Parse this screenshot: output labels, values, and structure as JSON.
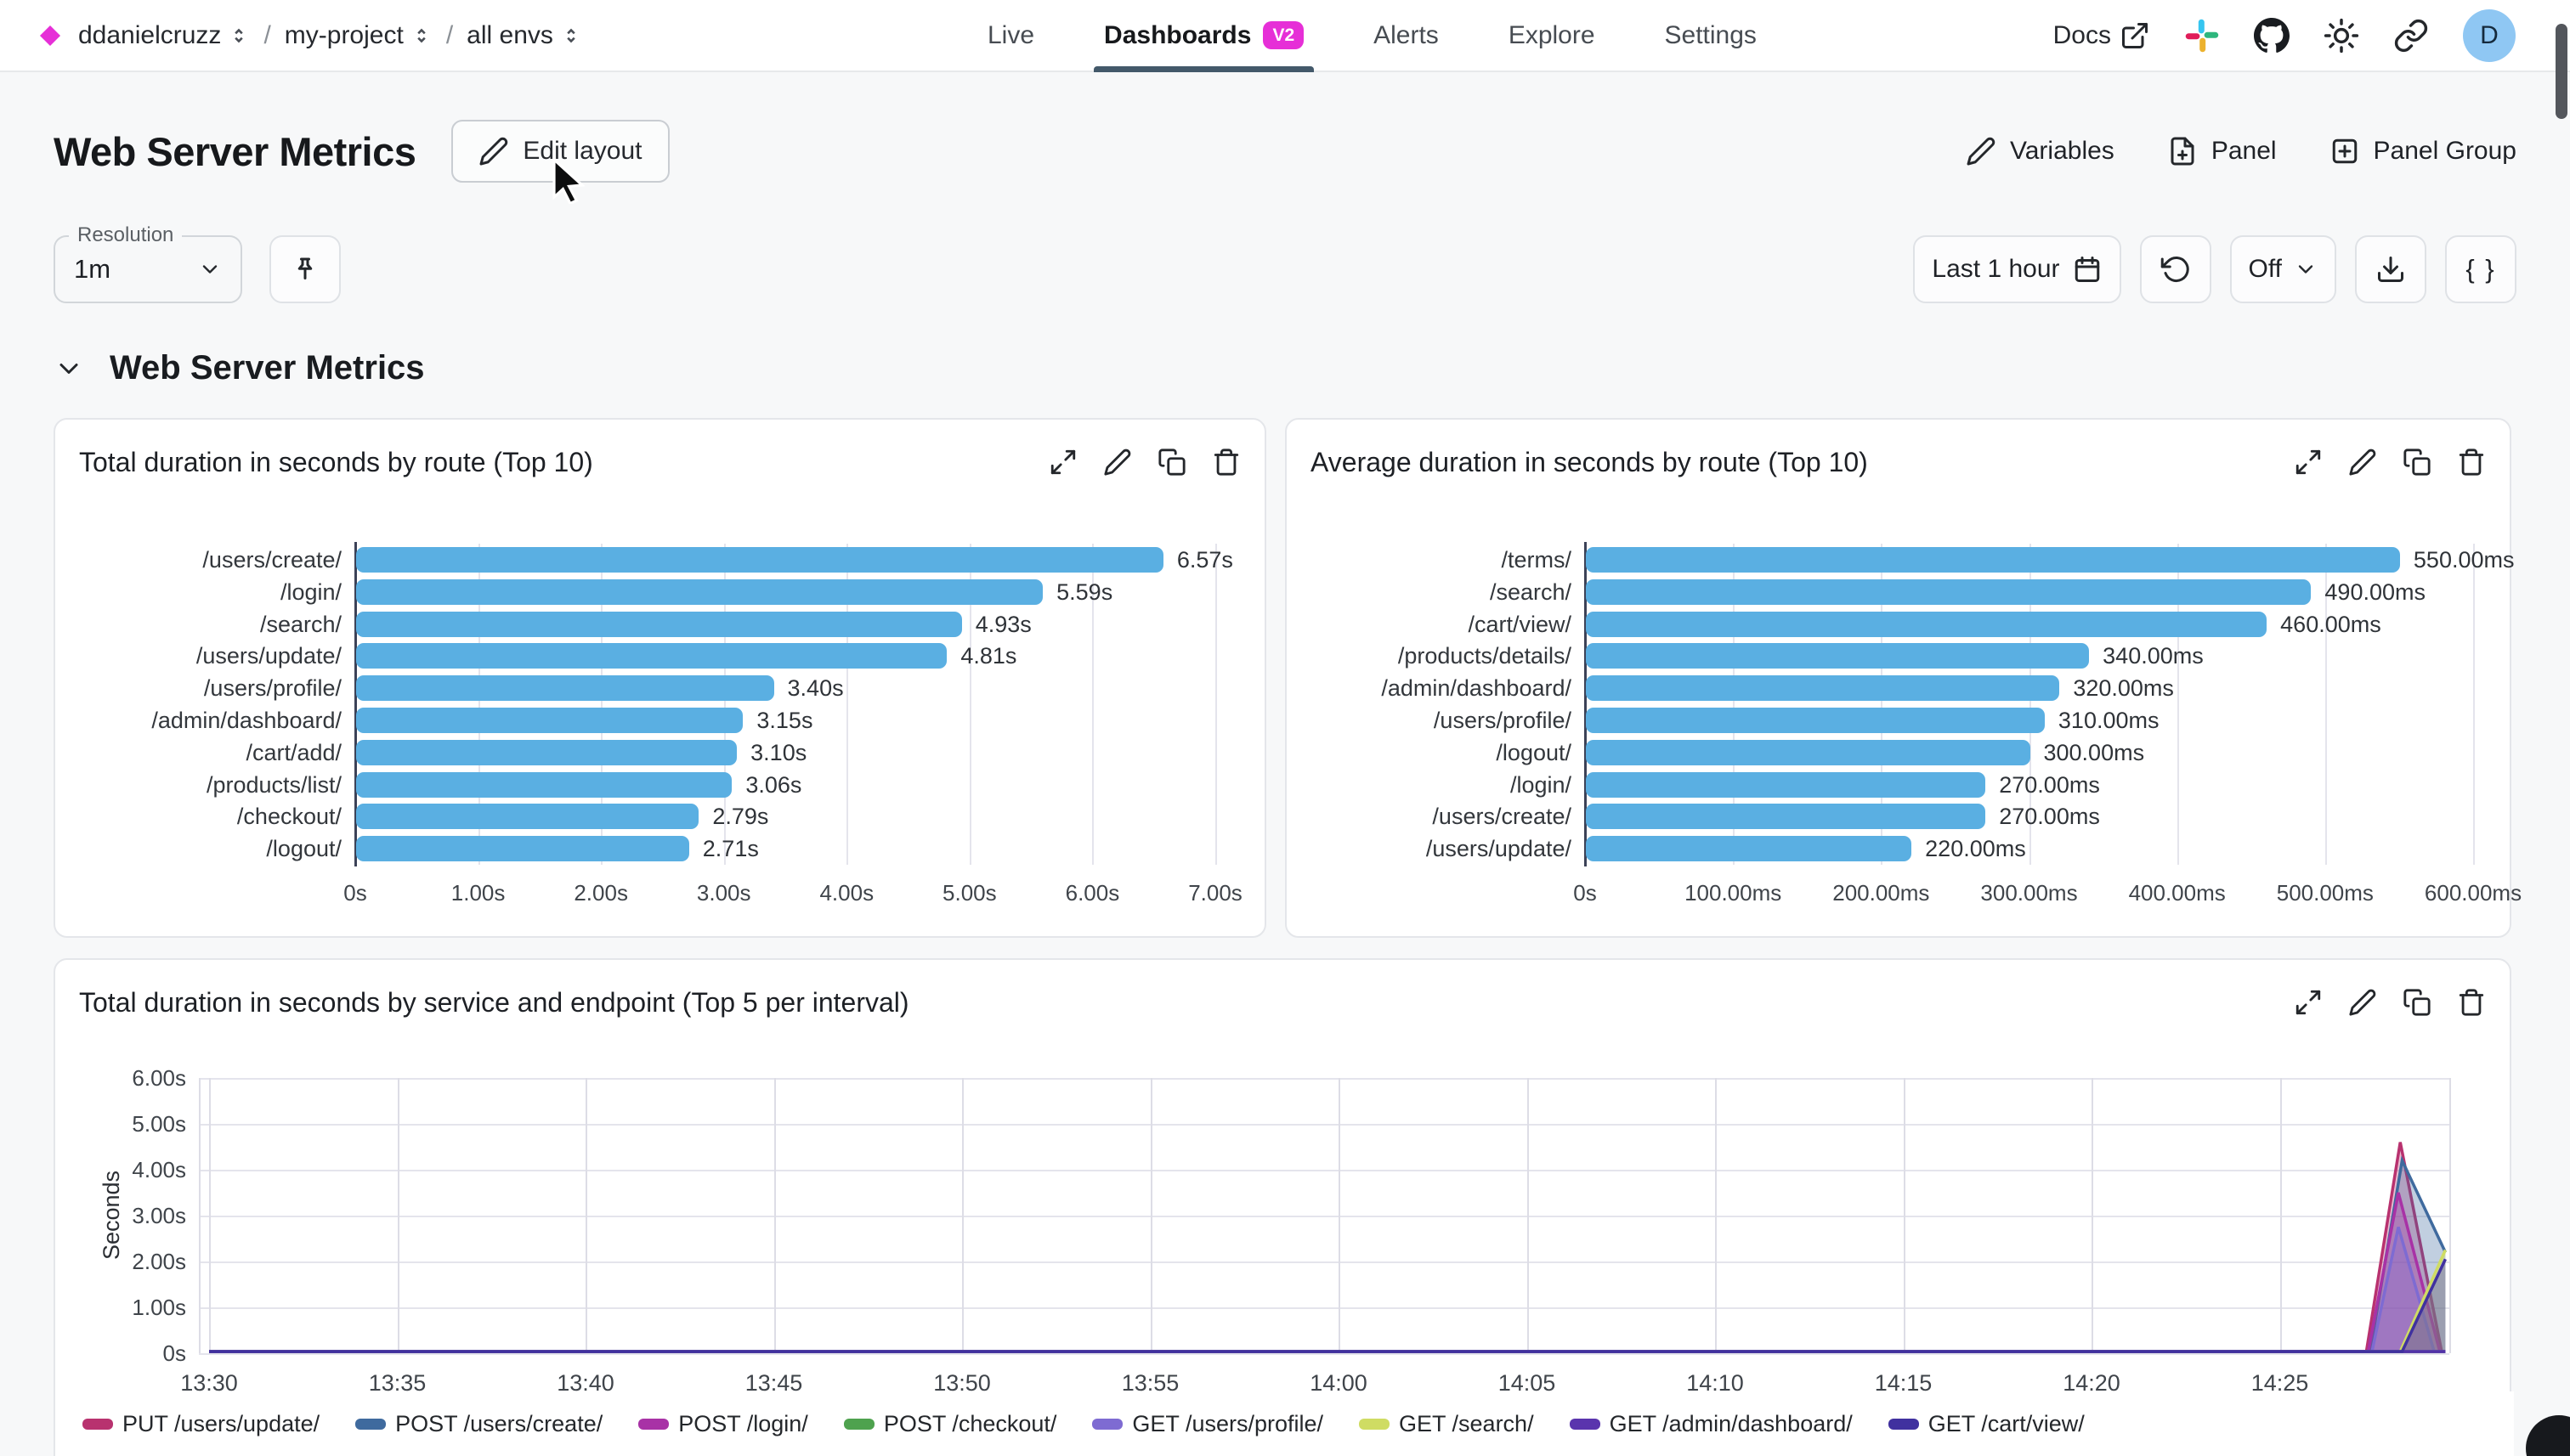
{
  "nav": {
    "logo_icon": "magenta-diamond",
    "breadcrumb": [
      {
        "label": "ddanielcruzz"
      },
      {
        "label": "my-project"
      },
      {
        "label": "all envs"
      }
    ],
    "tabs": [
      {
        "label": "Live",
        "active": false
      },
      {
        "label": "Dashboards",
        "badge": "V2",
        "active": true
      },
      {
        "label": "Alerts",
        "active": false
      },
      {
        "label": "Explore",
        "active": false
      },
      {
        "label": "Settings",
        "active": false
      }
    ],
    "docs_label": "Docs",
    "icons": [
      "external-link",
      "slack",
      "github",
      "theme-sun",
      "share-link"
    ],
    "avatar_initial": "D"
  },
  "header": {
    "title": "Web Server Metrics",
    "edit_layout_label": "Edit layout",
    "variables_label": "Variables",
    "panel_label": "Panel",
    "panel_group_label": "Panel Group"
  },
  "toolbar": {
    "resolution_label": "Resolution",
    "resolution_value": "1m",
    "pin_icon": "pin",
    "time_range_label": "Last 1 hour",
    "calendar_icon": "calendar",
    "refresh_icon": "refresh",
    "auto_refresh_value": "Off",
    "download_icon": "download",
    "braces_label": "{ }"
  },
  "section": {
    "title": "Web Server Metrics"
  },
  "colors": {
    "accent_magenta": "#e62fd7",
    "bar_blue": "#5aafe2",
    "tab_underline": "#43596a",
    "avatar_bg": "#8fc7f3",
    "panel_border": "#e4e6ea",
    "grid": "#e4e4ec"
  },
  "chart_data": [
    {
      "type": "bar",
      "orientation": "horizontal",
      "title": "Total duration in seconds by route (Top 10)",
      "categories": [
        "/users/create/",
        "/login/",
        "/search/",
        "/users/update/",
        "/users/profile/",
        "/admin/dashboard/",
        "/cart/add/",
        "/products/list/",
        "/checkout/",
        "/logout/"
      ],
      "values": [
        6.57,
        5.59,
        4.93,
        4.81,
        3.4,
        3.15,
        3.1,
        3.06,
        2.79,
        2.71
      ],
      "value_labels": [
        "6.57s",
        "5.59s",
        "4.93s",
        "4.81s",
        "3.40s",
        "3.15s",
        "3.10s",
        "3.06s",
        "2.79s",
        "2.71s"
      ],
      "xlim": [
        0,
        7
      ],
      "x_ticks": [
        "0s",
        "1.00s",
        "2.00s",
        "3.00s",
        "4.00s",
        "5.00s",
        "6.00s",
        "7.00s"
      ],
      "bar_color": "#5aafe2",
      "grid": true
    },
    {
      "type": "bar",
      "orientation": "horizontal",
      "title": "Average duration in seconds by route (Top 10)",
      "categories": [
        "/terms/",
        "/search/",
        "/cart/view/",
        "/products/details/",
        "/admin/dashboard/",
        "/users/profile/",
        "/logout/",
        "/login/",
        "/users/create/",
        "/users/update/"
      ],
      "values": [
        550,
        490,
        460,
        340,
        320,
        310,
        300,
        270,
        270,
        220
      ],
      "value_labels": [
        "550.00ms",
        "490.00ms",
        "460.00ms",
        "340.00ms",
        "320.00ms",
        "310.00ms",
        "300.00ms",
        "270.00ms",
        "270.00ms",
        "220.00ms"
      ],
      "xlim": [
        0,
        600
      ],
      "x_ticks": [
        "0s",
        "100.00ms",
        "200.00ms",
        "300.00ms",
        "400.00ms",
        "500.00ms",
        "600.00ms"
      ],
      "bar_color": "#5aafe2",
      "grid": true
    },
    {
      "type": "area",
      "title": "Total duration in seconds by service and endpoint (Top 5 per interval)",
      "ylabel": "Seconds",
      "ylim": [
        0,
        6
      ],
      "y_ticks": [
        "6.00s",
        "5.00s",
        "4.00s",
        "3.00s",
        "2.00s",
        "1.00s",
        "0s"
      ],
      "x_ticks": [
        "13:30",
        "13:35",
        "13:40",
        "13:45",
        "13:50",
        "13:55",
        "14:00",
        "14:05",
        "14:10",
        "14:15",
        "14:20",
        "14:25"
      ],
      "x_tick_interval_minutes": 5,
      "grid": true,
      "legend_position": "bottom",
      "note": "All series flat at 0s from 13:30, spike cluster near 14:27-14:29; points are [minutes_after_13:30, seconds]",
      "series": [
        {
          "name": "PUT /users/update/",
          "color": "#b8326f",
          "points": [
            [
              0,
              0
            ],
            [
              57.3,
              0
            ],
            [
              58.2,
              4.6
            ],
            [
              59.3,
              0
            ],
            [
              59.4,
              0
            ]
          ]
        },
        {
          "name": "POST /users/create/",
          "color": "#3f6a9e",
          "points": [
            [
              0,
              0
            ],
            [
              57.4,
              0
            ],
            [
              58.25,
              4.2
            ],
            [
              59.4,
              2.2
            ]
          ]
        },
        {
          "name": "POST /login/",
          "color": "#a832a6",
          "points": [
            [
              0,
              0
            ],
            [
              57.35,
              0
            ],
            [
              58.15,
              3.5
            ],
            [
              59.25,
              0
            ],
            [
              59.4,
              0
            ]
          ]
        },
        {
          "name": "POST /checkout/",
          "color": "#4ea24e",
          "points": [
            [
              0,
              0
            ],
            [
              59.4,
              0
            ]
          ]
        },
        {
          "name": "GET /users/profile/",
          "color": "#7e6bd2",
          "points": [
            [
              0,
              0
            ],
            [
              57.45,
              0
            ],
            [
              58.15,
              2.75
            ],
            [
              59.1,
              0
            ],
            [
              59.4,
              0
            ]
          ]
        },
        {
          "name": "GET /search/",
          "color": "#cfdc63",
          "points": [
            [
              0,
              0
            ],
            [
              58.2,
              0
            ],
            [
              59.4,
              2.25
            ]
          ]
        },
        {
          "name": "GET /admin/dashboard/",
          "color": "#5a34ad",
          "points": [
            [
              0,
              0
            ],
            [
              59.4,
              0
            ]
          ]
        },
        {
          "name": "GET /cart/view/",
          "color": "#40319f",
          "points": [
            [
              0,
              0
            ],
            [
              58.25,
              0
            ],
            [
              59.4,
              2.05
            ]
          ]
        }
      ]
    }
  ]
}
